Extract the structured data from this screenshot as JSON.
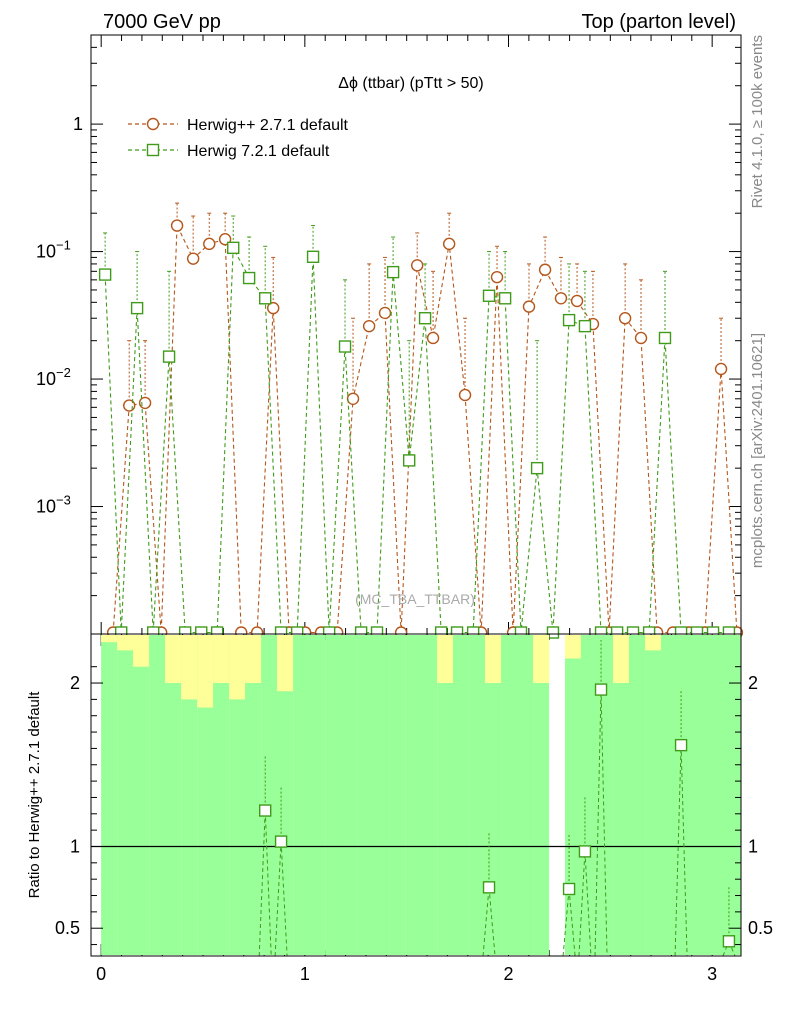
{
  "header": {
    "left": "7000 GeV pp",
    "right": "Top (parton level)"
  },
  "side_labels": {
    "rivet": "Rivet 4.1.0, ≥ 100k events",
    "mcplots": "mcplots.cern.ch [arXiv:2401.10621]"
  },
  "watermark": "(MC_TBA_TTBAR)",
  "colors": {
    "herwigpp": "#b5561b",
    "herwig7": "#3f9b1a",
    "band_green": "#99ff99",
    "band_yellow": "#ffff99"
  },
  "chart_data": [
    {
      "panel": "main",
      "type": "scatter",
      "title": "Δϕ (ttbar) (pTtt > 50)",
      "yscale": "log",
      "xlim": [
        -0.05,
        3.1416
      ],
      "ylim": [
        0.0001,
        5
      ],
      "ytick_labels": [
        {
          "value": 0.001,
          "base": "10",
          "exp": "−3"
        },
        {
          "value": 0.01,
          "base": "10",
          "exp": "−2"
        },
        {
          "value": 0.1,
          "base": "10",
          "exp": "−1"
        },
        {
          "value": 1,
          "base": "1",
          "exp": ""
        }
      ],
      "legend": [
        "Herwig++ 2.7.1 default",
        "Herwig 7.2.1 default"
      ],
      "x": [
        0.039,
        0.118,
        0.196,
        0.275,
        0.353,
        0.432,
        0.511,
        0.589,
        0.668,
        0.746,
        0.825,
        0.903,
        0.982,
        1.06,
        1.139,
        1.217,
        1.296,
        1.374,
        1.453,
        1.532,
        1.61,
        1.689,
        1.767,
        1.846,
        1.924,
        2.003,
        2.081,
        2.16,
        2.238,
        2.317,
        2.395,
        2.474,
        2.553,
        2.631,
        2.71,
        2.788,
        2.867,
        2.945,
        3.024,
        3.102
      ],
      "series": [
        {
          "name": "Herwig++ 2.7.1 default",
          "marker": "circle",
          "values": [
            0,
            0.0062,
            0.0065,
            0,
            0.16,
            0.088,
            0.115,
            0.125,
            0,
            0,
            0.036,
            0,
            0,
            0,
            0,
            0.007,
            0.026,
            0.033,
            0,
            0.078,
            0.021,
            0.115,
            0.0075,
            0,
            0.063,
            0,
            0.037,
            0.072,
            0.043,
            0.041,
            0.027,
            0,
            0.03,
            0.021,
            0,
            0,
            0,
            0,
            0.012,
            0
          ],
          "err_hi": [
            0,
            0.02,
            0.02,
            0,
            0.24,
            0.19,
            0.2,
            0.2,
            0,
            0,
            0.09,
            0,
            0,
            0,
            0,
            0.03,
            0.08,
            0.09,
            0,
            0.14,
            0.07,
            0.2,
            0.03,
            0,
            0.11,
            0,
            0.08,
            0.13,
            0.09,
            0.08,
            0.07,
            0,
            0.08,
            0.06,
            0,
            0,
            0,
            0,
            0.03,
            0
          ]
        },
        {
          "name": "Herwig 7.2.1 default",
          "marker": "square",
          "values": [
            0.066,
            0,
            0.036,
            0,
            0.015,
            0,
            0,
            0,
            0.107,
            0.062,
            0.043,
            0,
            0,
            0.091,
            0,
            0.018,
            0,
            0,
            0.069,
            0.0023,
            0.03,
            0,
            0,
            0,
            0.045,
            0.043,
            0,
            0.002,
            0,
            0.029,
            0.026,
            0,
            0,
            0,
            0,
            0.021,
            0,
            0,
            0,
            0
          ],
          "err_hi": [
            0.14,
            0,
            0.1,
            0,
            0.07,
            0,
            0,
            0,
            0.19,
            0.13,
            0.11,
            0,
            0,
            0.16,
            0,
            0.06,
            0,
            0,
            0.13,
            0.02,
            0.08,
            0,
            0,
            0,
            0.1,
            0.1,
            0,
            0.02,
            0,
            0.08,
            0.07,
            0,
            0,
            0,
            0,
            0.07,
            0,
            0,
            0,
            0
          ]
        }
      ]
    },
    {
      "panel": "ratio",
      "type": "scatter",
      "ylabel": "Ratio to Herwig++ 2.7.1 default",
      "xlabel": "",
      "xlim": [
        -0.05,
        3.1416
      ],
      "ylim": [
        0.33,
        2.3
      ],
      "xticks": [
        0,
        1,
        2,
        3
      ],
      "yticks": [
        0.5,
        1,
        2
      ],
      "reference_line": 1,
      "series": [
        {
          "name": "Herwig 7.2.1 default",
          "marker": "square",
          "x": [
            0.825,
            0.903,
            1.924,
            2.317,
            2.395,
            2.474,
            2.867,
            3.102
          ],
          "values": [
            1.22,
            1.03,
            0.75,
            0.74,
            0.97,
            1.96,
            1.62,
            0.42
          ]
        }
      ]
    }
  ]
}
